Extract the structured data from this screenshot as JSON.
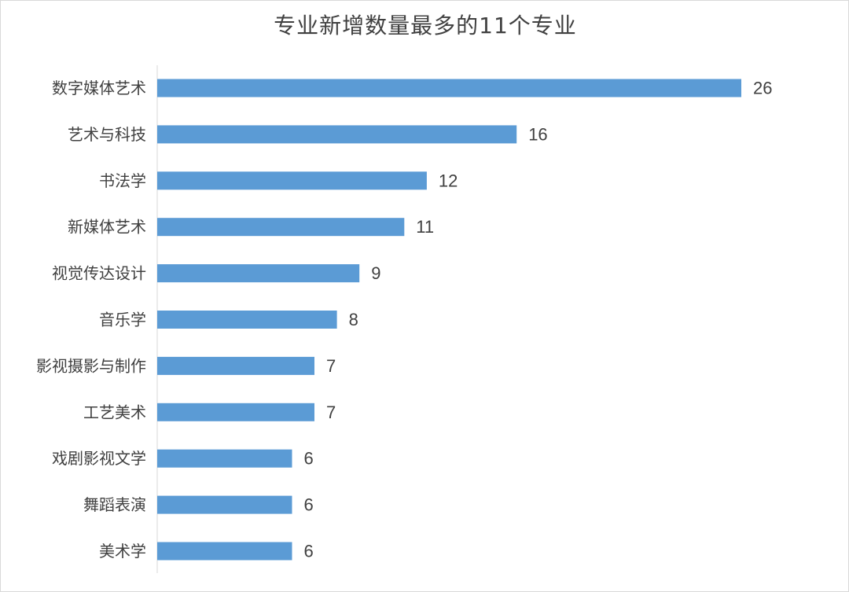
{
  "chart_data": {
    "type": "bar",
    "orientation": "horizontal",
    "title": "专业新增数量最多的11个专业",
    "categories": [
      "数字媒体艺术",
      "艺术与科技",
      "书法学",
      "新媒体艺术",
      "视觉传达设计",
      "音乐学",
      "影视摄影与制作",
      "工艺美术",
      "戏剧影视文学",
      "舞蹈表演",
      "美术学"
    ],
    "values": [
      26,
      16,
      12,
      11,
      9,
      8,
      7,
      7,
      6,
      6,
      6
    ],
    "value_labels": [
      "26",
      "16",
      "12",
      "11",
      "9",
      "8",
      "7",
      "7",
      "6",
      "6",
      "6"
    ],
    "xlim": [
      0,
      26
    ],
    "grid": false,
    "legend": "none",
    "bar_color": "#5b9bd5",
    "axis_color": "#d9d9d9"
  }
}
